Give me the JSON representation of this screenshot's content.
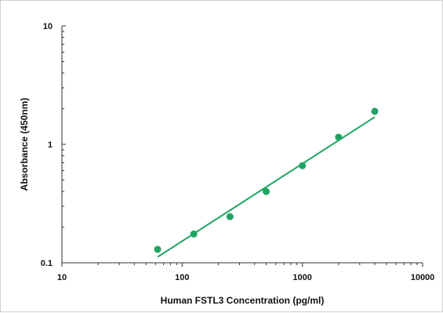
{
  "chart_data": {
    "type": "scatter",
    "title": "",
    "xlabel": "Human FSTL3 Concentration (pg/ml)",
    "ylabel": "Absorbance (450nm)",
    "xscale": "log",
    "yscale": "log",
    "xlim": [
      10,
      10000
    ],
    "ylim": [
      0.1,
      10
    ],
    "x_ticks": [
      "10",
      "100",
      "1000",
      "10000"
    ],
    "y_ticks": [
      "10",
      "1",
      "0.1"
    ],
    "grid": false,
    "legend": "none",
    "colors": {
      "points": "#1fa463",
      "fit_line": "#1fa463",
      "axis": "#333333"
    },
    "series": [
      {
        "x": [
          62.5,
          125,
          250,
          500,
          1000,
          2000,
          4000
        ],
        "y": [
          0.13,
          0.175,
          0.245,
          0.4,
          0.66,
          1.15,
          1.9
        ]
      }
    ],
    "fit_line": {
      "x": [
        62.5,
        4000
      ],
      "y": [
        0.112,
        1.7
      ]
    }
  }
}
